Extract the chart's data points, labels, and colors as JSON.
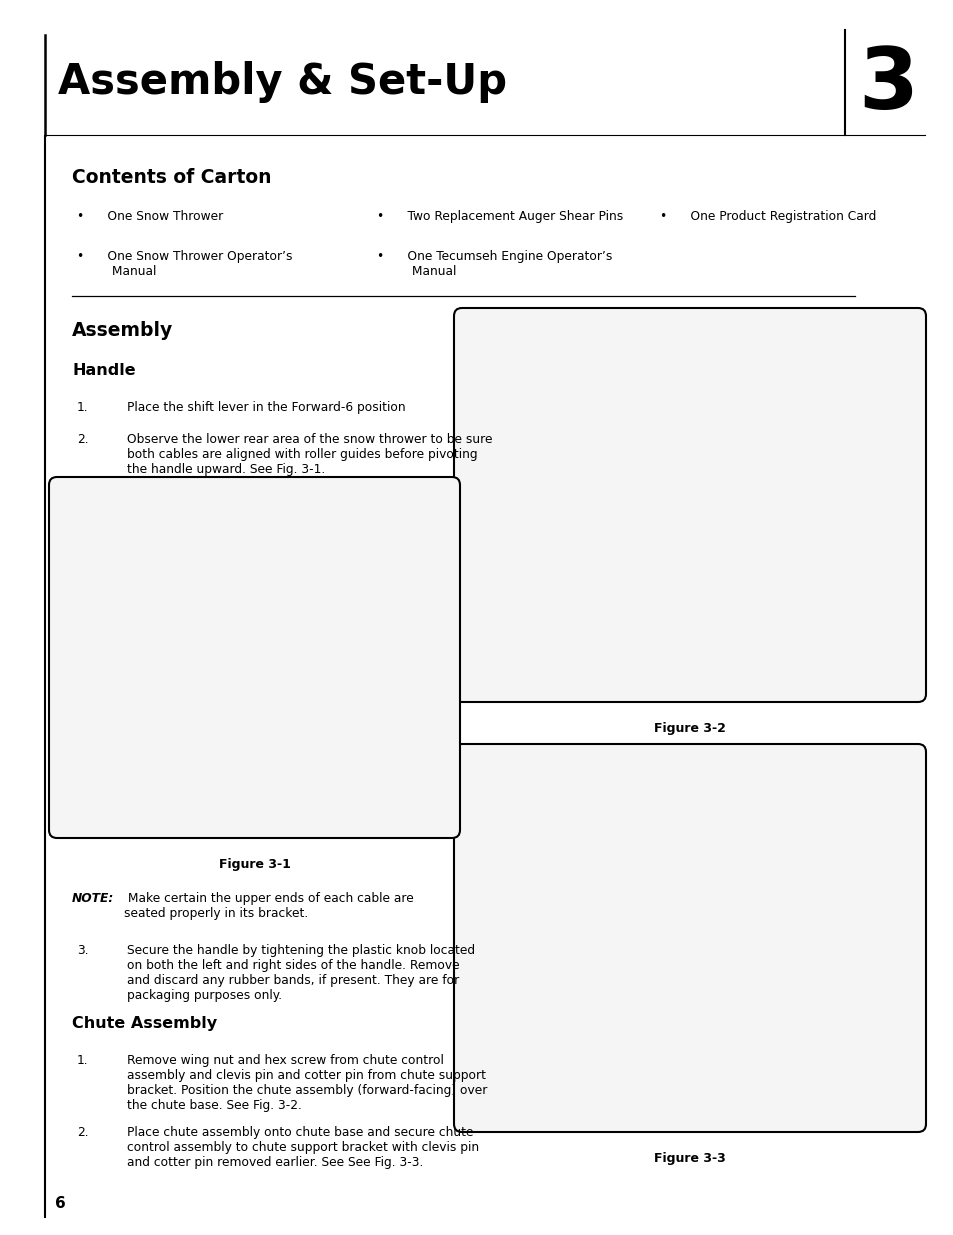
{
  "bg_color": "#ffffff",
  "page_width": 9.54,
  "page_height": 12.35,
  "header_title": "Assembly & Set-Up",
  "header_number": "3",
  "contents_heading": "Contents of Carton",
  "assembly_heading": "Assembly",
  "handle_heading": "Handle",
  "handle_step1": "1.      Place the shift lever in the Forward-6 position",
  "handle_step2_num": "2.",
  "handle_step2_text": "Observe the lower rear area of the snow thrower to be sure\nboth cables are aligned with roller guides before pivoting\nthe handle upward. See Fig. 3-1.",
  "note_bold": "NOTE:",
  "note_text": " Make certain the upper ends of each cable are\nseated properly in its bracket.",
  "step3_num": "3.",
  "step3_text": "Secure the handle by tightening the plastic knob located\non both the left and right sides of the handle. Remove\nand discard any rubber bands, if present. They are for\npackaging purposes only.",
  "chute_heading": "Chute Assembly",
  "chute_step1_num": "1.",
  "chute_step1_text": "Remove wing nut and hex screw from chute control\nassembly and clevis pin and cotter pin from chute support\nbracket. Position the chute assembly (forward-facing) over\nthe chute base. See Fig. 3-2.",
  "chute_step2_num": "2.",
  "chute_step2_text": "Place chute assembly onto chute base and secure chute\ncontrol assembly to chute support bracket with clevis pin\nand cotter pin removed earlier. See See Fig. 3-3.",
  "fig1_label": "Figure 3-1",
  "fig2_label": "Figure 3-2",
  "fig3_label": "Figure 3-3",
  "page_number": "6",
  "col1_bullet1": "•      One Snow Thrower",
  "col1_bullet2": "•      One Snow Thrower Operator’s\n         Manual",
  "col2_bullet1": "•      Two Replacement Auger Shear Pins",
  "col2_bullet2": "•      One Tecumseh Engine Operator’s\n         Manual",
  "col3_bullet1": "•      One Product Registration Card"
}
